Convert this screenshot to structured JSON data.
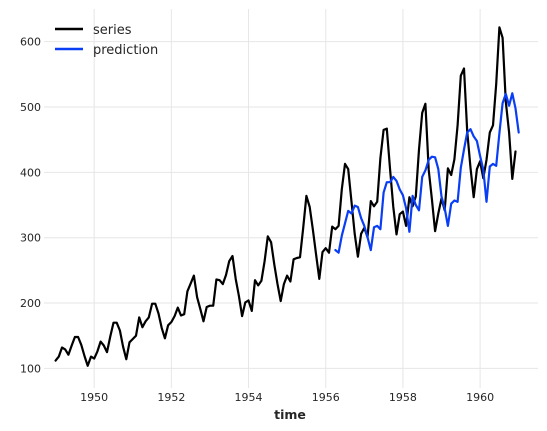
{
  "chart_data": {
    "type": "line",
    "xlabel": "time",
    "ylabel": "",
    "title": "",
    "xlim": [
      1948.7,
      1961.5
    ],
    "ylim": [
      70,
      650
    ],
    "xticks": [
      1950,
      1952,
      1954,
      1956,
      1958,
      1960
    ],
    "yticks": [
      100,
      200,
      300,
      400,
      500,
      600
    ],
    "grid": true,
    "legend": {
      "position": "top-left"
    },
    "colors": {
      "series": "#000000",
      "prediction": "#0a3ef5"
    },
    "series": [
      {
        "name": "series",
        "start": "1949-01",
        "step": "monthly",
        "values": [
          112,
          118,
          132,
          129,
          121,
          135,
          148,
          148,
          136,
          119,
          104,
          118,
          115,
          126,
          141,
          135,
          125,
          149,
          170,
          170,
          158,
          133,
          114,
          140,
          145,
          150,
          178,
          163,
          172,
          178,
          199,
          199,
          184,
          162,
          146,
          166,
          171,
          180,
          193,
          181,
          183,
          218,
          230,
          242,
          209,
          191,
          172,
          194,
          196,
          196,
          236,
          235,
          229,
          243,
          264,
          272,
          237,
          211,
          180,
          201,
          204,
          188,
          235,
          227,
          234,
          264,
          302,
          293,
          259,
          229,
          203,
          229,
          242,
          233,
          267,
          269,
          270,
          315,
          364,
          347,
          312,
          274,
          237,
          278,
          284,
          277,
          317,
          313,
          318,
          374,
          413,
          405,
          355,
          306,
          271,
          306,
          315,
          301,
          356,
          348,
          355,
          422,
          465,
          467,
          404,
          347,
          305,
          336,
          340,
          318,
          362,
          348,
          363,
          435,
          491,
          505,
          404,
          359,
          310,
          337,
          360,
          342,
          406,
          396,
          420,
          472,
          548,
          559,
          463,
          407,
          362,
          405,
          417,
          391,
          419,
          461,
          472,
          535,
          622,
          606,
          508,
          461,
          390,
          432
        ]
      },
      {
        "name": "prediction",
        "start": "1956-04",
        "step": "monthly",
        "values": [
          281,
          277,
          303,
          322,
          341,
          337,
          349,
          347,
          330,
          318,
          301,
          281,
          316,
          318,
          313,
          369,
          385,
          385,
          393,
          387,
          374,
          365,
          345,
          309,
          364,
          350,
          342,
          393,
          403,
          419,
          424,
          423,
          405,
          363,
          345,
          318,
          352,
          357,
          355,
          407,
          435,
          461,
          466,
          455,
          448,
          425,
          404,
          355,
          409,
          413,
          410,
          460,
          506,
          520,
          502,
          521,
          498,
          461
        ]
      }
    ]
  }
}
